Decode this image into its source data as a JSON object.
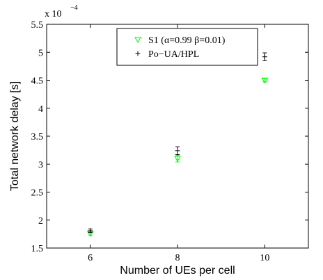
{
  "chart_data": {
    "type": "scatter",
    "xlabel": "Number of UEs per cell",
    "ylabel": "Total network delay [s]",
    "y_multiplier_label": "x 10",
    "y_multiplier_exponent": "−4",
    "xlim": [
      5,
      11
    ],
    "ylim": [
      1.5,
      5.5
    ],
    "y_scale_factor": 0.0001,
    "xticks": [
      6,
      8,
      10
    ],
    "yticks": [
      1.5,
      2,
      2.5,
      3,
      3.5,
      4,
      4.5,
      5,
      5.5
    ],
    "xtick_labels": [
      "6",
      "8",
      "10"
    ],
    "ytick_labels": [
      "1.5",
      "2",
      "2.5",
      "3",
      "3.5",
      "4",
      "4.5",
      "5",
      "5.5"
    ],
    "grid": false,
    "legend_position": "top-center",
    "series": [
      {
        "name": "S1 (α=0.99 β=0.01)",
        "color": "#00ff00",
        "marker": "triangle-down",
        "x": [
          6,
          8,
          10
        ],
        "y": [
          1.76,
          3.1,
          4.5
        ],
        "err_low": [
          1.73,
          3.04,
          4.47
        ],
        "err_high": [
          1.79,
          3.16,
          4.53
        ]
      },
      {
        "name": "Po−UA/HPL",
        "color": "#000000",
        "marker": "plus",
        "x": [
          6,
          8,
          10
        ],
        "y": [
          1.81,
          3.24,
          4.92
        ],
        "err_low": [
          1.78,
          3.17,
          4.85
        ],
        "err_high": [
          1.84,
          3.31,
          4.99
        ]
      }
    ]
  }
}
